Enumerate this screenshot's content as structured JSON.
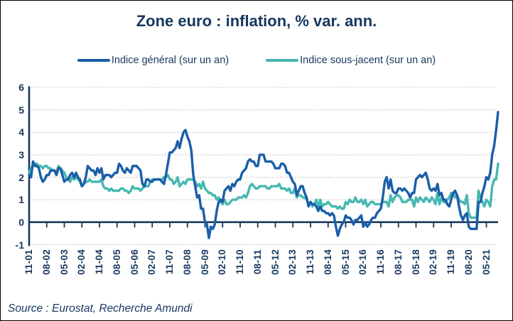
{
  "source": "Source : Eurostat, Recherche Amundi",
  "colors": {
    "text_navy": "#17375E",
    "axis_navy": "#17375E",
    "grid_gray": "#9b9b9b",
    "series_general_blue": "#1B5EA9",
    "series_core_teal": "#45B8B1",
    "background": "#ffffff",
    "border": "#000000"
  },
  "chart_data": {
    "type": "line",
    "title": "Zone euro : inflation, % var. ann.",
    "xlabel": "",
    "ylabel": "",
    "ylim": [
      -1,
      6
    ],
    "y_ticks": [
      6,
      5,
      4,
      3,
      2,
      1,
      0,
      -1
    ],
    "grid": "horizontal dotted",
    "legend_position": "top",
    "frequency": "monthly",
    "x_start": "2001-11",
    "x_end": "2021-11",
    "x_tick_every_months": 9,
    "x_tick_labels": [
      "11-01",
      "08-02",
      "05-03",
      "02-04",
      "11-04",
      "08-05",
      "05-06",
      "02-07",
      "11-07",
      "08-08",
      "05-09",
      "02-10",
      "11-10",
      "08-11",
      "05-12",
      "02-13",
      "11-13",
      "08-14",
      "05-15",
      "02-16",
      "11-16",
      "08-17",
      "05-18",
      "02-19",
      "11-19",
      "08-20",
      "05-21"
    ],
    "series": [
      {
        "name": "Indice général (sur un an)",
        "color": "#1B5EA9",
        "values": [
          2.1,
          2.0,
          2.7,
          2.5,
          2.5,
          2.4,
          2.0,
          1.8,
          1.9,
          2.1,
          2.1,
          2.3,
          2.3,
          2.3,
          2.1,
          2.4,
          2.4,
          2.1,
          1.8,
          1.9,
          1.9,
          2.1,
          2.2,
          2.0,
          2.2,
          2.0,
          1.9,
          1.6,
          1.7,
          2.0,
          2.5,
          2.4,
          2.3,
          2.3,
          2.1,
          2.4,
          2.2,
          2.4,
          1.9,
          2.1,
          2.1,
          2.1,
          2.0,
          2.1,
          2.2,
          2.2,
          2.6,
          2.5,
          2.3,
          2.2,
          2.4,
          2.3,
          2.2,
          2.5,
          2.5,
          2.5,
          2.4,
          2.3,
          1.7,
          1.6,
          1.9,
          1.9,
          1.8,
          1.8,
          1.9,
          1.9,
          1.9,
          1.9,
          1.8,
          1.7,
          2.1,
          2.6,
          3.1,
          3.1,
          3.2,
          3.3,
          3.6,
          3.3,
          3.7,
          4.0,
          4.1,
          3.8,
          3.6,
          3.2,
          2.1,
          1.6,
          1.1,
          1.2,
          0.6,
          0.6,
          0.0,
          -0.1,
          -0.7,
          -0.2,
          -0.3,
          -0.1,
          0.5,
          0.9,
          1.0,
          0.9,
          1.4,
          1.5,
          1.6,
          1.4,
          1.7,
          1.6,
          1.8,
          1.9,
          1.9,
          2.2,
          2.3,
          2.4,
          2.7,
          2.8,
          2.7,
          2.7,
          2.5,
          2.5,
          3.0,
          3.0,
          3.0,
          2.7,
          2.7,
          2.7,
          2.7,
          2.6,
          2.4,
          2.4,
          2.4,
          2.6,
          2.6,
          2.5,
          2.2,
          2.2,
          2.0,
          1.8,
          1.7,
          1.2,
          1.4,
          1.6,
          1.6,
          1.3,
          1.1,
          0.7,
          0.9,
          0.8,
          0.8,
          0.7,
          0.5,
          0.7,
          0.5,
          0.5,
          0.4,
          0.4,
          0.3,
          0.4,
          0.3,
          -0.2,
          -0.6,
          -0.3,
          -0.1,
          0.0,
          0.3,
          0.2,
          0.2,
          0.1,
          -0.1,
          0.1,
          0.1,
          0.2,
          0.3,
          -0.2,
          0.0,
          -0.2,
          -0.1,
          0.1,
          0.2,
          0.2,
          0.4,
          0.5,
          0.6,
          1.1,
          1.8,
          2.0,
          1.5,
          1.9,
          1.4,
          1.3,
          1.3,
          1.5,
          1.5,
          1.4,
          1.5,
          1.4,
          1.3,
          1.1,
          1.3,
          1.3,
          1.9,
          2.0,
          2.1,
          2.0,
          2.1,
          2.2,
          1.9,
          1.5,
          1.4,
          1.5,
          1.4,
          1.7,
          1.2,
          1.3,
          1.0,
          1.0,
          0.8,
          0.7,
          1.0,
          1.3,
          1.4,
          1.2,
          0.7,
          0.3,
          0.1,
          0.3,
          0.4,
          -0.2,
          -0.3,
          -0.3,
          -0.3,
          -0.3,
          0.9,
          0.9,
          1.3,
          1.6,
          2.0,
          1.9,
          2.2,
          3.0,
          3.4,
          4.1,
          4.9
        ]
      },
      {
        "name": "Indice sous-jacent (sur un an)",
        "color": "#45B8B1",
        "values": [
          2.2,
          2.4,
          2.5,
          2.6,
          2.6,
          2.5,
          2.5,
          2.4,
          2.5,
          2.5,
          2.4,
          2.4,
          2.3,
          2.3,
          2.2,
          2.5,
          2.4,
          2.3,
          2.2,
          2.0,
          1.9,
          1.8,
          2.0,
          1.9,
          2.0,
          1.9,
          1.8,
          1.6,
          1.7,
          1.8,
          1.8,
          1.9,
          1.8,
          1.8,
          1.8,
          1.8,
          1.8,
          1.9,
          1.6,
          1.5,
          1.5,
          1.4,
          1.5,
          1.4,
          1.4,
          1.4,
          1.4,
          1.5,
          1.5,
          1.4,
          1.4,
          1.3,
          1.4,
          1.6,
          1.5,
          1.5,
          1.5,
          1.4,
          1.5,
          1.6,
          1.6,
          1.6,
          1.8,
          1.9,
          1.9,
          1.9,
          1.9,
          1.9,
          1.9,
          2.0,
          2.0,
          2.1,
          1.9,
          1.9,
          1.7,
          1.8,
          2.0,
          1.6,
          1.7,
          1.8,
          1.7,
          1.9,
          1.9,
          1.9,
          1.9,
          1.8,
          1.6,
          1.7,
          1.5,
          1.8,
          1.5,
          1.4,
          1.3,
          1.3,
          1.2,
          1.2,
          1.0,
          1.1,
          0.9,
          0.8,
          1.0,
          0.8,
          0.8,
          0.9,
          1.0,
          1.0,
          1.0,
          1.1,
          1.1,
          1.1,
          1.2,
          1.1,
          1.3,
          1.6,
          1.7,
          1.6,
          1.5,
          1.5,
          1.6,
          1.6,
          1.6,
          1.6,
          1.5,
          1.5,
          1.6,
          1.6,
          1.6,
          1.6,
          1.7,
          1.5,
          1.5,
          1.5,
          1.4,
          1.5,
          1.3,
          1.3,
          1.5,
          1.1,
          1.2,
          1.2,
          1.1,
          1.1,
          1.0,
          0.8,
          0.9,
          0.7,
          0.8,
          1.0,
          0.7,
          1.0,
          0.7,
          0.8,
          0.8,
          0.9,
          0.8,
          0.7,
          0.7,
          0.7,
          0.6,
          0.7,
          0.6,
          0.6,
          0.9,
          0.8,
          1.0,
          0.9,
          0.9,
          1.1,
          0.9,
          0.9,
          1.0,
          0.8,
          1.0,
          0.7,
          0.8,
          0.9,
          0.9,
          0.8,
          0.8,
          0.8,
          0.8,
          0.9,
          0.9,
          0.9,
          0.7,
          1.2,
          0.9,
          1.1,
          1.2,
          1.2,
          1.1,
          0.9,
          0.9,
          0.9,
          1.0,
          1.0,
          1.0,
          0.7,
          1.1,
          0.9,
          1.1,
          1.0,
          0.9,
          1.1,
          1.0,
          0.9,
          1.1,
          1.0,
          0.8,
          1.3,
          0.8,
          1.1,
          0.9,
          0.9,
          1.0,
          1.1,
          1.3,
          1.3,
          1.1,
          1.2,
          1.0,
          0.9,
          0.9,
          0.8,
          1.2,
          0.4,
          0.2,
          0.2,
          0.2,
          0.2,
          1.4,
          1.1,
          0.9,
          0.7,
          1.0,
          0.9,
          0.7,
          1.6,
          1.9,
          1.9,
          2.6
        ]
      }
    ]
  }
}
